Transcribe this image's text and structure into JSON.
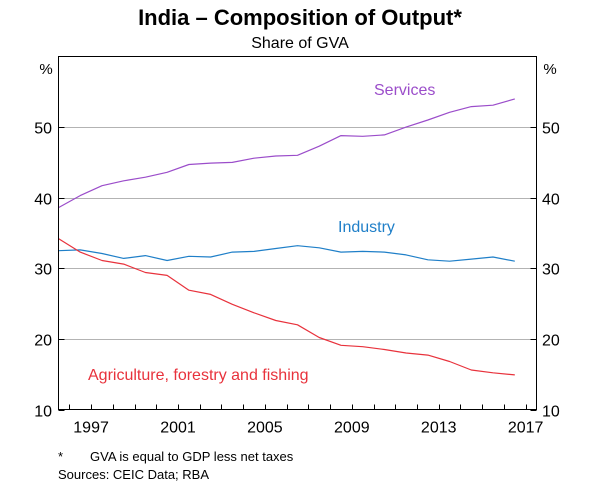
{
  "chart_data": {
    "type": "line",
    "title": "India – Composition of Output*",
    "subtitle": "Share of GVA",
    "y_unit": "%",
    "ylim": [
      10,
      60
    ],
    "xlim": [
      1995.5,
      2017.5
    ],
    "y_ticks": [
      10,
      20,
      30,
      40,
      50
    ],
    "x_ticks": [
      "1997",
      "2001",
      "2005",
      "2009",
      "2013",
      "2017"
    ],
    "x_tick_values": [
      1997,
      2001,
      2005,
      2009,
      2013,
      2017
    ],
    "x": [
      1995.5,
      1996.5,
      1997.5,
      1998.5,
      1999.5,
      2000.5,
      2001.5,
      2002.5,
      2003.5,
      2004.5,
      2005.5,
      2006.5,
      2007.5,
      2008.5,
      2009.5,
      2010.5,
      2011.5,
      2012.5,
      2013.5,
      2014.5,
      2015.5,
      2016.5
    ],
    "series": [
      {
        "name": "Services",
        "color": "#9B4DCA",
        "values": [
          38.6,
          40.3,
          41.7,
          42.4,
          42.9,
          43.6,
          44.7,
          44.9,
          45.0,
          45.6,
          45.9,
          46.0,
          47.3,
          48.8,
          48.7,
          48.9,
          50.0,
          51.0,
          52.1,
          52.9,
          53.1,
          54.0
        ]
      },
      {
        "name": "Industry",
        "color": "#1F7FC8",
        "values": [
          32.5,
          32.6,
          32.1,
          31.4,
          31.8,
          31.1,
          31.7,
          31.6,
          32.3,
          32.4,
          32.8,
          33.2,
          32.9,
          32.3,
          32.4,
          32.3,
          31.9,
          31.2,
          31.0,
          31.3,
          31.6,
          31.0
        ]
      },
      {
        "name": "Agriculture, forestry and fishing",
        "color": "#E8323C",
        "values": [
          34.2,
          32.3,
          31.1,
          30.6,
          29.4,
          29.0,
          26.9,
          26.3,
          24.9,
          23.7,
          22.6,
          22.0,
          20.2,
          19.1,
          18.9,
          18.5,
          18.0,
          17.7,
          16.8,
          15.6,
          15.2,
          14.9
        ]
      }
    ],
    "series_labels": [
      "Services",
      "Industry",
      "Agriculture, forestry and fishing"
    ],
    "legend": "inline labels"
  },
  "footnotes": {
    "note_marker": "*",
    "note_text": "GVA is equal to GDP less net taxes",
    "sources": "Sources:  CEIC Data; RBA"
  }
}
